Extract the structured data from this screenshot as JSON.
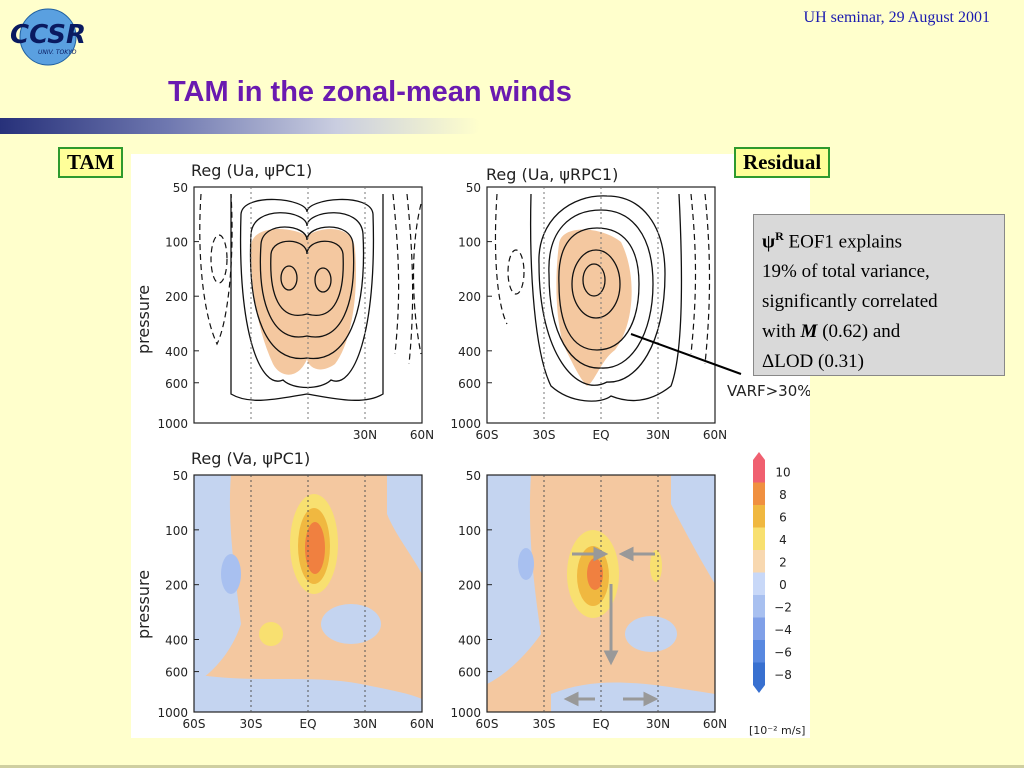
{
  "header": {
    "logo_text": "CCSR",
    "logo_subtext": "UNIV. TOKYO",
    "seminar": "UH seminar, 29 August 2001",
    "title": "TAM in the zonal-mean winds"
  },
  "labels": {
    "tam": "TAM",
    "residual": "Residual"
  },
  "note": {
    "psi_symbol": "ψ",
    "psi_superscript": "R",
    "line1_rest": " EOF1 explains",
    "line2": "19% of total variance,",
    "line3": "significantly correlated",
    "line4_pre": "with ",
    "line4_M": "M",
    "line4_post": " (0.62) and",
    "line5_delta": "Δ",
    "line5_rest": "LOD (0.31)"
  },
  "figure": {
    "panel_titles": {
      "top_left": "Reg (Ua, ψPC1)",
      "top_right": "Reg (Ua, ψRPC1)",
      "bottom_left": "Reg (Va, ψPC1)"
    },
    "ylabel": "pressure",
    "pressure_ticks": [
      "50",
      "100",
      "200",
      "400",
      "600",
      "1000"
    ],
    "lat_ticks": [
      "60S",
      "30S",
      "EQ",
      "30N",
      "60N"
    ],
    "top_left_visible_lat_ticks": [
      "30N",
      "60N"
    ],
    "varf_label": "VARF>30%",
    "colorbar": {
      "ticks": [
        "10",
        "8",
        "6",
        "4",
        "2",
        "0",
        "−2",
        "−4",
        "−6",
        "−8"
      ],
      "unit": "[10⁻² m/s]",
      "colors": [
        "#f06070",
        "#f09040",
        "#f0b840",
        "#f8e070",
        "#f8d8b0",
        "#c8d8f8",
        "#a8c0f0",
        "#80a0e8",
        "#5888e0",
        "#3870d0"
      ]
    },
    "fill_colors": {
      "positive": "#f4c8a0",
      "negative": "#c4d4f0",
      "strong_positive": "#f08040"
    }
  }
}
